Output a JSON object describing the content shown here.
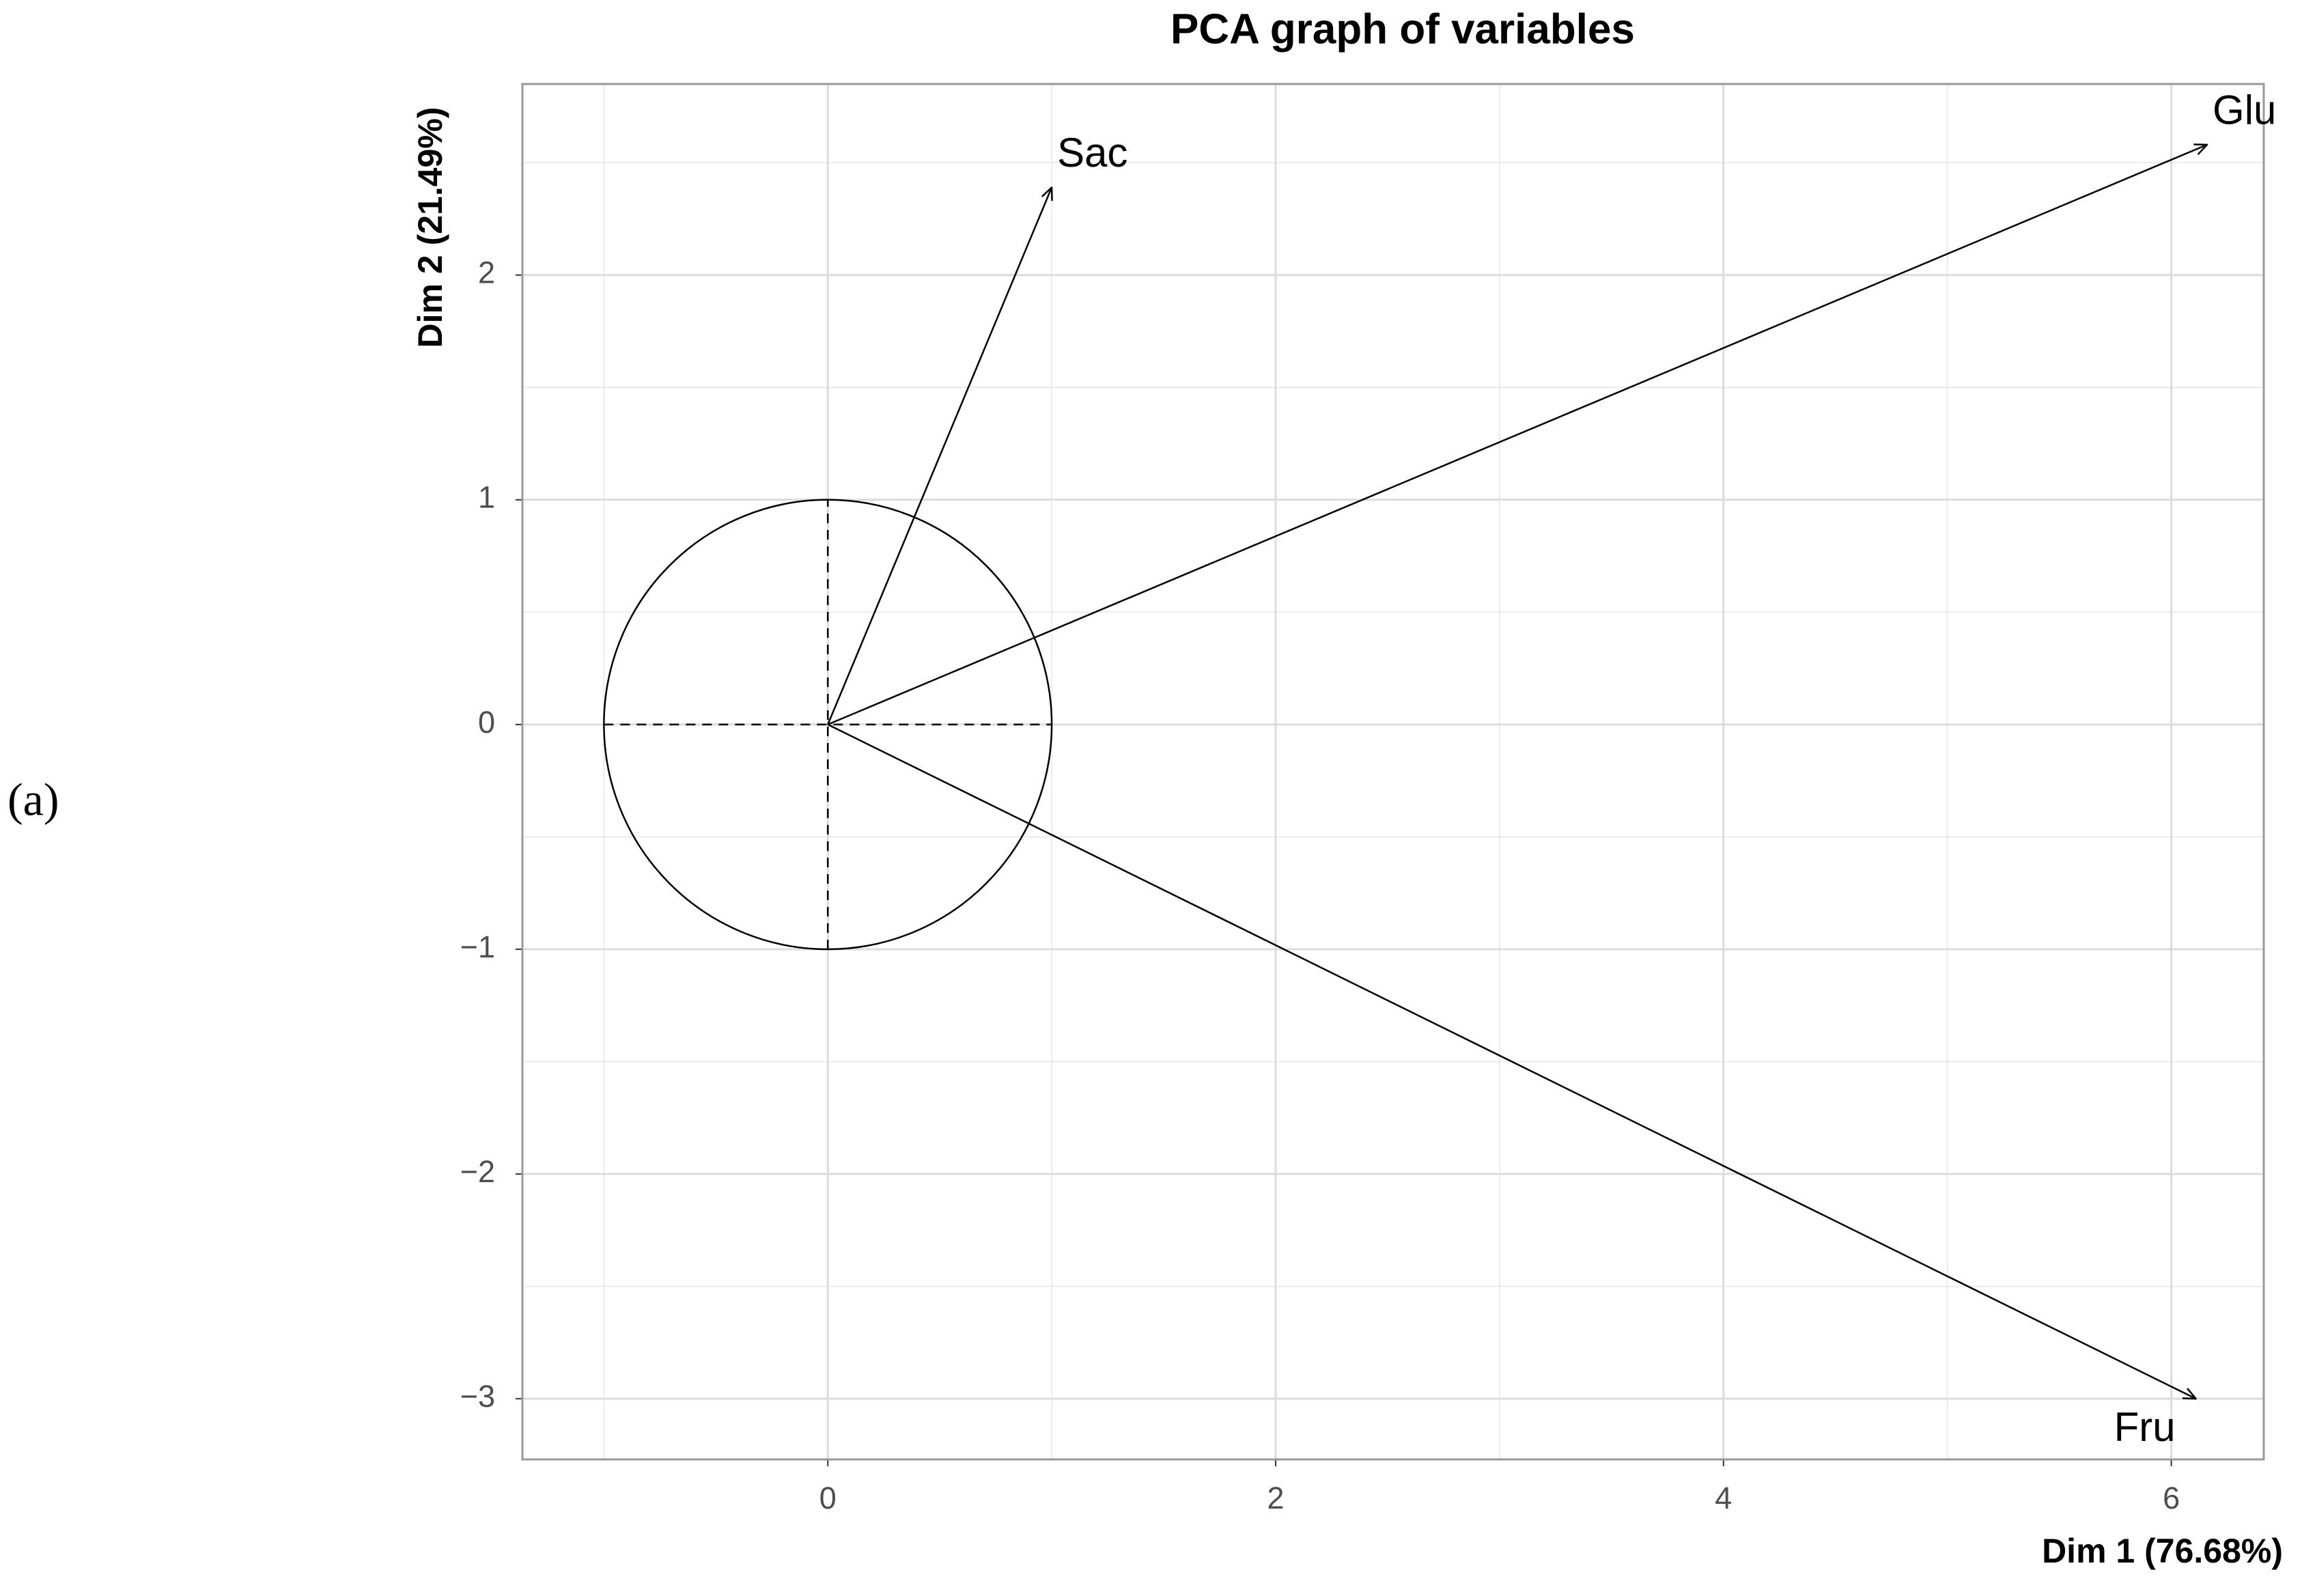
{
  "panel_label": "(a)",
  "chart_data": {
    "type": "vector",
    "title": "PCA graph of variables",
    "x_label": "Dim 1 (76.68%)",
    "y_label": "Dim 2 (21.49%)",
    "series": [
      {
        "name": "Sac",
        "x": 1.0,
        "values": 2.39,
        "color": "#000000"
      },
      {
        "name": "Glu",
        "x": 6.16,
        "values": 2.58,
        "color": "#000000"
      },
      {
        "name": "Fru",
        "x": 6.11,
        "values": -3.0,
        "color": "#000000"
      }
    ],
    "circle_radius": 1,
    "xlim": [
      -1.364,
      6.413
    ],
    "ylim": [
      -3.27,
      2.85
    ],
    "xticks": [
      0,
      2,
      4,
      6
    ],
    "yticks": [
      {
        "value": -3,
        "label": "−3"
      },
      {
        "value": -2,
        "label": "−2"
      },
      {
        "value": -1,
        "label": "−1"
      },
      0,
      1,
      2
    ],
    "xminor": [
      -1,
      1,
      3,
      5
    ],
    "yminor": [
      -2.5,
      -1.5,
      -0.5,
      0.5,
      1.5,
      2.5
    ],
    "grid": true
  }
}
